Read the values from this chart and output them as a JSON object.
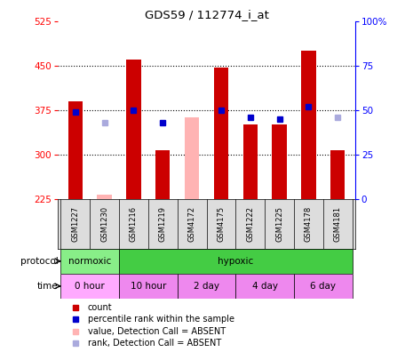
{
  "title": "GDS59 / 112774_i_at",
  "samples": [
    "GSM1227",
    "GSM1230",
    "GSM1216",
    "GSM1219",
    "GSM4172",
    "GSM4175",
    "GSM1222",
    "GSM1225",
    "GSM4178",
    "GSM4181"
  ],
  "count_values": [
    390,
    null,
    460,
    307,
    null,
    447,
    351,
    350,
    475,
    307
  ],
  "count_absent": [
    null,
    232,
    null,
    null,
    null,
    null,
    null,
    null,
    null,
    null
  ],
  "rank_values": [
    49,
    null,
    50,
    43,
    null,
    50,
    46,
    45,
    52,
    null
  ],
  "rank_absent": [
    null,
    43,
    null,
    null,
    null,
    null,
    null,
    null,
    null,
    46
  ],
  "absent_bar_values": [
    null,
    null,
    null,
    null,
    362,
    null,
    null,
    null,
    null,
    null
  ],
  "ylim": [
    225,
    525
  ],
  "y2lim": [
    0,
    100
  ],
  "yticks": [
    225,
    300,
    375,
    450,
    525
  ],
  "y2ticks": [
    0,
    25,
    50,
    75,
    100
  ],
  "bar_color": "#CC0000",
  "absent_bar_color": "#FFB3B3",
  "rank_color": "#0000CC",
  "rank_absent_color": "#AAAADD",
  "protocol_groups": [
    {
      "label": "normoxic",
      "start": 0,
      "end": 2,
      "color": "#88EE88"
    },
    {
      "label": "hypoxic",
      "start": 2,
      "end": 10,
      "color": "#44CC44"
    }
  ],
  "time_groups": [
    {
      "label": "0 hour",
      "start": 0,
      "end": 2,
      "color": "#FFAAFF"
    },
    {
      "label": "10 hour",
      "start": 2,
      "end": 4,
      "color": "#EE88EE"
    },
    {
      "label": "2 day",
      "start": 4,
      "end": 6,
      "color": "#EE88EE"
    },
    {
      "label": "4 day",
      "start": 6,
      "end": 8,
      "color": "#EE88EE"
    },
    {
      "label": "6 day",
      "start": 8,
      "end": 10,
      "color": "#EE88EE"
    }
  ],
  "legend_items": [
    {
      "label": "count",
      "color": "#CC0000"
    },
    {
      "label": "percentile rank within the sample",
      "color": "#0000CC"
    },
    {
      "label": "value, Detection Call = ABSENT",
      "color": "#FFB3B3"
    },
    {
      "label": "rank, Detection Call = ABSENT",
      "color": "#AAAADD"
    }
  ]
}
